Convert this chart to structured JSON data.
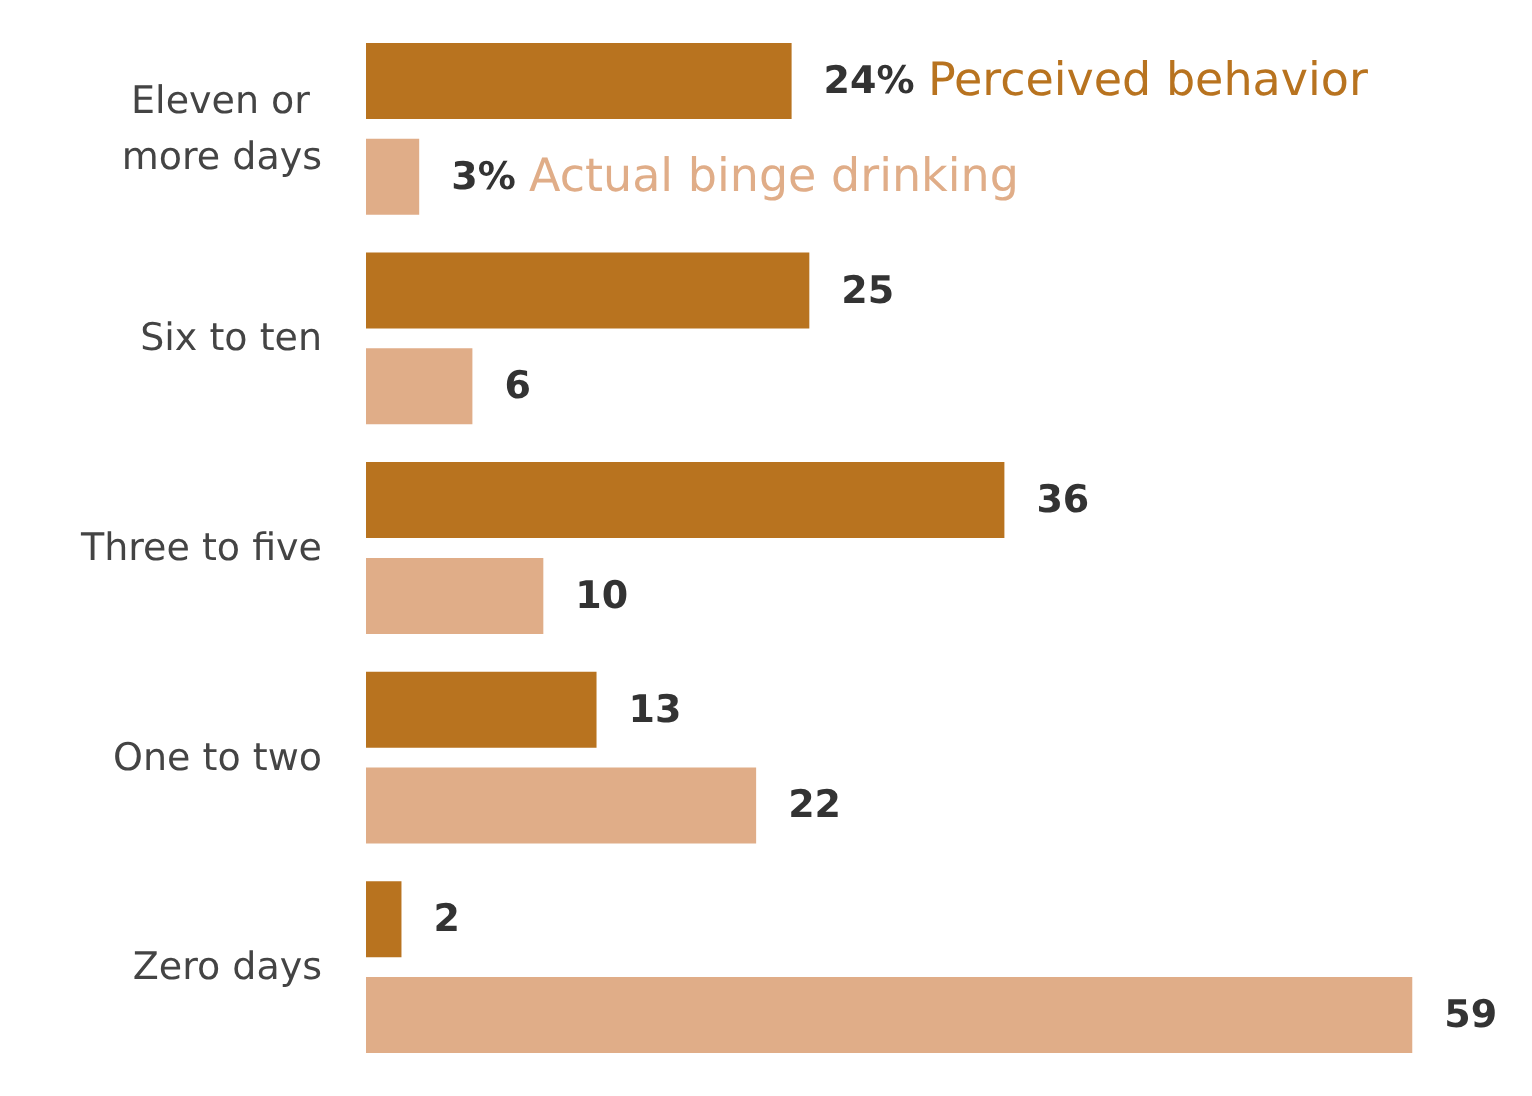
{
  "chart_data": {
    "type": "bar",
    "orientation": "horizontal",
    "categories": [
      "Eleven or more days",
      "Six to ten",
      "Three to five",
      "One to two",
      "Zero days"
    ],
    "series": [
      {
        "name": "Perceived behavior",
        "color": "#b8731f",
        "values": [
          24,
          25,
          36,
          13,
          2
        ],
        "value_labels": [
          "24%",
          "25",
          "36",
          "13",
          "2"
        ]
      },
      {
        "name": "Actual binge drinking",
        "color": "#e0ad88",
        "values": [
          3,
          6,
          10,
          22,
          59
        ],
        "value_labels": [
          "3%",
          "6",
          "10",
          "22",
          "59"
        ]
      }
    ],
    "legend": false,
    "grid": false
  }
}
